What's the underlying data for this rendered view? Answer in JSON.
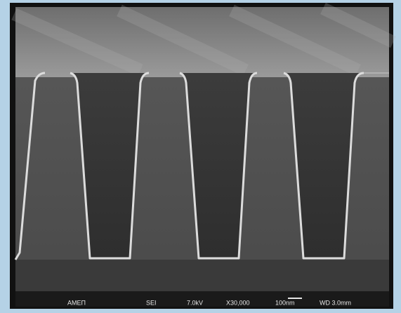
{
  "caption": {
    "lab": "AMEΠ",
    "detector": "SEI",
    "voltage": "7.0kV",
    "magnification": "X30,000",
    "scale": "100nm",
    "working_distance": "WD 3.0mm"
  }
}
